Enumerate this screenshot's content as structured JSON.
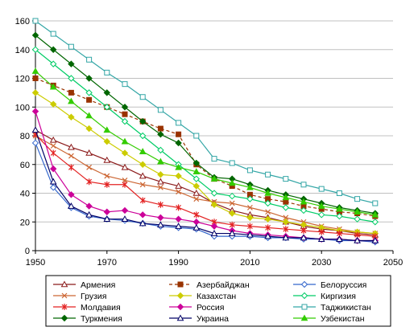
{
  "chart_data": {
    "type": "line",
    "title": "",
    "xlabel": "",
    "ylabel": "",
    "xlim": [
      1950,
      2050
    ],
    "ylim": [
      0,
      160
    ],
    "x_ticks": [
      1950,
      1970,
      1990,
      2010,
      2030,
      2050
    ],
    "y_ticks": [
      0,
      20,
      40,
      60,
      80,
      100,
      120,
      140,
      160
    ],
    "grid": "horizontal",
    "legend_position": "bottom",
    "x": [
      1950,
      1955,
      1960,
      1965,
      1970,
      1975,
      1980,
      1985,
      1990,
      1995,
      2000,
      2005,
      2010,
      2015,
      2020,
      2025,
      2030,
      2035,
      2040,
      2045
    ],
    "series": [
      {
        "name": "Армения",
        "color": "#8B1A1A",
        "marker": "triangle-open",
        "dash": false,
        "values": [
          84,
          77,
          72,
          68,
          63,
          58,
          52,
          48,
          45,
          40,
          33,
          28,
          25,
          23,
          20,
          17,
          15,
          14,
          12,
          11
        ]
      },
      {
        "name": "Азербайджан",
        "color": "#993300",
        "marker": "square-filled",
        "dash": true,
        "values": [
          120,
          115,
          110,
          105,
          100,
          95,
          90,
          85,
          81,
          60,
          50,
          45,
          39,
          36,
          34,
          31,
          29,
          27,
          26,
          24
        ]
      },
      {
        "name": "Белоруссия",
        "color": "#3366CC",
        "marker": "diamond-open",
        "dash": false,
        "values": [
          75,
          44,
          30,
          24,
          22,
          21,
          19,
          17,
          16,
          15,
          10,
          10,
          10,
          9,
          9,
          8,
          8,
          7,
          7,
          6
        ]
      },
      {
        "name": "Грузия",
        "color": "#CC6633",
        "marker": "x",
        "dash": false,
        "values": [
          80,
          73,
          66,
          58,
          52,
          49,
          46,
          44,
          41,
          36,
          34,
          33,
          30,
          27,
          23,
          20,
          17,
          15,
          13,
          12
        ]
      },
      {
        "name": "Казахстан",
        "color": "#CCCC00",
        "marker": "diamond-filled",
        "dash": false,
        "values": [
          110,
          102,
          93,
          85,
          76,
          68,
          60,
          53,
          52,
          45,
          32,
          26,
          23,
          22,
          20,
          18,
          16,
          14,
          13,
          12
        ]
      },
      {
        "name": "Киргизия",
        "color": "#00CC66",
        "marker": "diamond-open",
        "dash": false,
        "values": [
          140,
          130,
          120,
          110,
          100,
          90,
          80,
          70,
          60,
          50,
          40,
          38,
          36,
          33,
          30,
          28,
          25,
          24,
          22,
          20
        ]
      },
      {
        "name": "Молдавия",
        "color": "#E32222",
        "marker": "star",
        "dash": false,
        "values": [
          81,
          68,
          58,
          48,
          46,
          46,
          35,
          32,
          30,
          25,
          20,
          18,
          17,
          16,
          15,
          14,
          13,
          12,
          11,
          10
        ]
      },
      {
        "name": "Россия",
        "color": "#CC0099",
        "marker": "diamond-filled",
        "dash": false,
        "values": [
          97,
          57,
          39,
          31,
          27,
          28,
          25,
          23,
          22,
          20,
          17,
          14,
          12,
          11,
          10,
          9,
          8,
          8,
          7,
          7
        ]
      },
      {
        "name": "Таджикистан",
        "color": "#33A6A6",
        "marker": "square-open",
        "dash": false,
        "values": [
          160,
          151,
          142,
          133,
          124,
          116,
          107,
          98,
          89,
          80,
          64,
          61,
          56,
          53,
          50,
          46,
          43,
          40,
          36,
          33
        ]
      },
      {
        "name": "Туркмения",
        "color": "#006600",
        "marker": "diamond-filled",
        "dash": false,
        "values": [
          150,
          140,
          130,
          120,
          110,
          100,
          90,
          81,
          75,
          61,
          51,
          50,
          46,
          42,
          39,
          36,
          33,
          30,
          28,
          26
        ]
      },
      {
        "name": "Украина",
        "color": "#000066",
        "marker": "triangle-open",
        "dash": false,
        "values": [
          84,
          48,
          31,
          25,
          22,
          22,
          19,
          18,
          17,
          16,
          12,
          12,
          11,
          10,
          9,
          9,
          8,
          8,
          7,
          7
        ]
      },
      {
        "name": "Узбекистан",
        "color": "#33CC00",
        "marker": "triangle-filled",
        "dash": false,
        "values": [
          125,
          114,
          104,
          94,
          84,
          76,
          69,
          62,
          58,
          55,
          50,
          47,
          44,
          40,
          37,
          34,
          31,
          29,
          27,
          25
        ]
      }
    ]
  }
}
